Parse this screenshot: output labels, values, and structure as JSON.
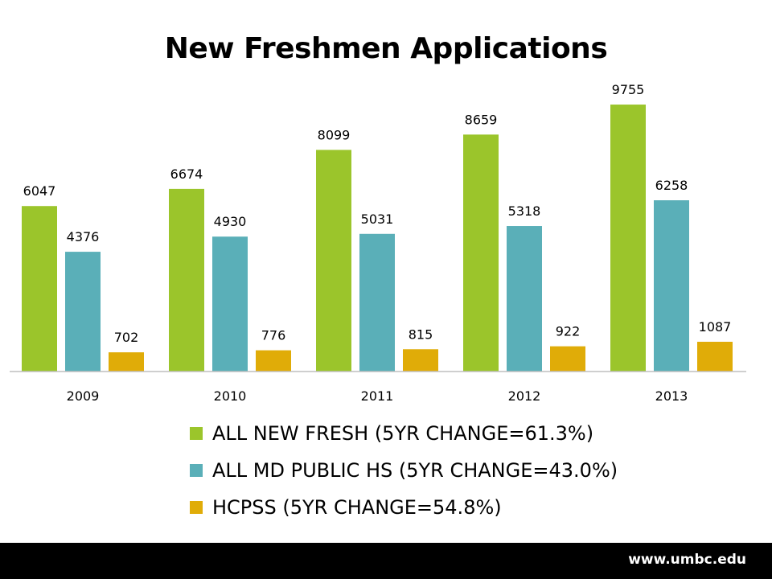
{
  "chart_data": {
    "type": "bar",
    "title": "New Freshmen Applications",
    "categories": [
      "2009",
      "2010",
      "2011",
      "2012",
      "2013"
    ],
    "series": [
      {
        "name": "ALL NEW FRESH (5YR CHANGE=61.3%)",
        "values": [
          6047,
          6674,
          8099,
          8659,
          9755
        ],
        "color": "#9bc52b"
      },
      {
        "name": "ALL MD PUBLIC HS (5YR CHANGE=43.0%)",
        "values": [
          4376,
          4930,
          5031,
          5318,
          6258
        ],
        "color": "#5aafb8"
      },
      {
        "name": "HCPSS (5YR CHANGE=54.8%)",
        "values": [
          702,
          776,
          815,
          922,
          1087
        ],
        "color": "#e0ac08"
      }
    ],
    "ylim": [
      0,
      10000
    ],
    "grid": false,
    "legend_position": "bottom"
  },
  "footer": {
    "url": "www.umbc.edu"
  }
}
